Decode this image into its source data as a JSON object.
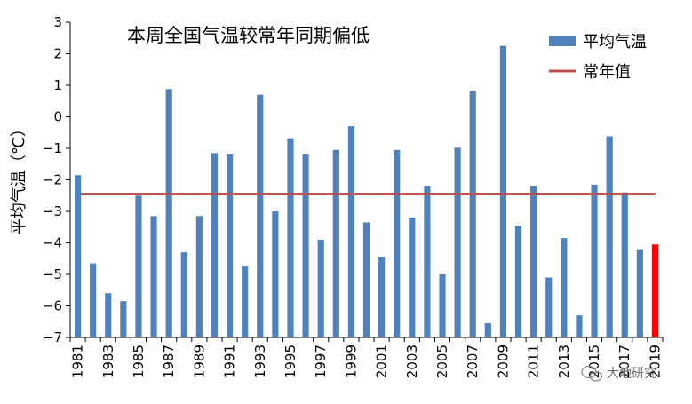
{
  "chart_data": {
    "type": "bar",
    "title": "本周全国气温较常年同期偏低",
    "ylabel": "平均气温（℃）",
    "xlabel": "",
    "ylim": [
      -7,
      3
    ],
    "yticks": [
      "3",
      "2",
      "1",
      "0",
      "−1",
      "−2",
      "−3",
      "−4",
      "−5",
      "−6",
      "−7"
    ],
    "categories": [
      "1981",
      "1982",
      "1983",
      "1984",
      "1985",
      "1986",
      "1987",
      "1988",
      "1989",
      "1990",
      "1991",
      "1992",
      "1993",
      "1994",
      "1995",
      "1996",
      "1997",
      "1998",
      "1999",
      "2000",
      "2001",
      "2002",
      "2003",
      "2004",
      "2005",
      "2006",
      "2007",
      "2008",
      "2009",
      "2010",
      "2011",
      "2012",
      "2013",
      "2014",
      "2015",
      "2016",
      "2017",
      "2018",
      "2019"
    ],
    "xtick_labels": [
      "1981",
      "",
      "1983",
      "",
      "1985",
      "",
      "1987",
      "",
      "1989",
      "",
      "1991",
      "",
      "1993",
      "",
      "1995",
      "",
      "1997",
      "",
      "1999",
      "",
      "2001",
      "",
      "2003",
      "",
      "2005",
      "",
      "2007",
      "",
      "2009",
      "",
      "2011",
      "",
      "2013",
      "",
      "2015",
      "",
      "2017",
      "",
      "2019"
    ],
    "series": [
      {
        "name": "平均气温",
        "color": "#4f81bd",
        "highlight_color": "#ff0000",
        "highlight_index": 38,
        "values": [
          -1.85,
          -4.65,
          -5.6,
          -5.85,
          -2.5,
          -3.15,
          0.88,
          -4.3,
          -3.15,
          -1.15,
          -1.2,
          -4.75,
          0.7,
          -3.0,
          -0.68,
          -1.2,
          -3.9,
          -1.05,
          -0.3,
          -3.35,
          -4.45,
          -1.05,
          -3.2,
          -2.2,
          -5.0,
          -0.98,
          0.82,
          -6.55,
          2.25,
          -3.45,
          -2.2,
          -5.1,
          -3.85,
          -6.3,
          -2.15,
          -0.62,
          -2.4,
          -4.2,
          -4.05
        ]
      },
      {
        "name": "常年值",
        "type": "line",
        "color": "#c0504d",
        "value": -2.45
      }
    ],
    "legend_position": "top-right",
    "grid": false
  },
  "watermark": {
    "text": "大地研究",
    "icon": "wechat-icon"
  }
}
